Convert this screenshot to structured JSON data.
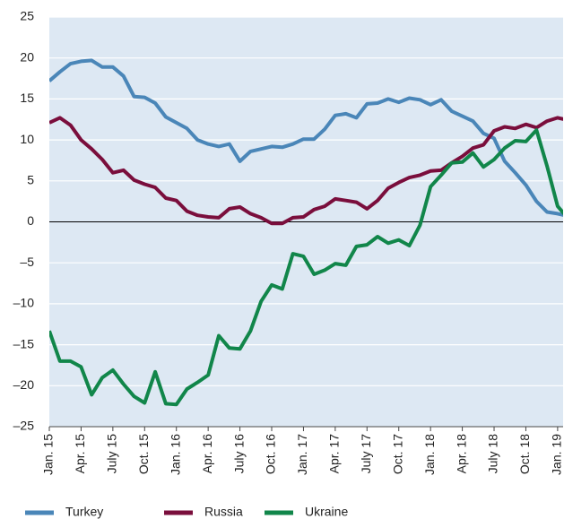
{
  "chart_data": {
    "type": "line",
    "categories": [
      "Jan. 15",
      null,
      null,
      "Apr. 15",
      null,
      null,
      "July 15",
      null,
      null,
      "Oct. 15",
      null,
      null,
      "Jan. 16",
      null,
      null,
      "Apr. 16",
      null,
      null,
      "July 16",
      null,
      null,
      "Oct. 16",
      null,
      null,
      "Jan. 17",
      null,
      null,
      "Apr. 17",
      null,
      null,
      "July 17",
      null,
      null,
      "Oct. 17",
      null,
      null,
      "Jan. 18",
      null,
      null,
      "Apr. 18",
      null,
      null,
      "July 18",
      null,
      null,
      "Oct. 18",
      null,
      null,
      "Jan. 19",
      null
    ],
    "series": [
      {
        "name": "Turkey",
        "color": "#4a86b8",
        "values": [
          17.2,
          18.3,
          19.3,
          19.6,
          19.7,
          18.9,
          18.9,
          17.8,
          15.3,
          15.2,
          14.5,
          12.8,
          12.1,
          11.4,
          10.0,
          9.5,
          9.2,
          9.5,
          7.4,
          8.6,
          8.9,
          9.2,
          9.1,
          9.5,
          10.1,
          10.1,
          11.3,
          13.0,
          13.2,
          12.7,
          14.4,
          14.5,
          15.0,
          14.6,
          15.1,
          14.9,
          14.3,
          14.9,
          13.5,
          12.9,
          12.3,
          10.8,
          10.2,
          7.4,
          6.0,
          4.5,
          2.5,
          1.2,
          1.0,
          0.7
        ]
      },
      {
        "name": "Russia",
        "color": "#7a0e3c",
        "values": [
          12.1,
          12.7,
          11.8,
          10.0,
          8.9,
          7.6,
          6.0,
          6.3,
          5.1,
          4.6,
          4.2,
          2.9,
          2.6,
          1.3,
          0.8,
          0.6,
          0.5,
          1.6,
          1.8,
          1.0,
          0.5,
          -0.2,
          -0.2,
          0.5,
          0.6,
          1.5,
          1.9,
          2.8,
          2.6,
          2.4,
          1.6,
          2.6,
          4.1,
          4.8,
          5.4,
          5.7,
          6.2,
          6.3,
          7.2,
          8.0,
          9.0,
          9.4,
          11.1,
          11.6,
          11.4,
          11.9,
          11.5,
          12.3,
          12.7,
          12.4
        ]
      },
      {
        "name": "Ukraine",
        "color": "#11864a",
        "values": [
          -13.3,
          -17.0,
          -17.0,
          -17.7,
          -21.1,
          -19.0,
          -18.1,
          -19.8,
          -21.3,
          -22.1,
          -18.3,
          -22.2,
          -22.3,
          -20.4,
          -19.6,
          -18.7,
          -13.9,
          -15.4,
          -15.5,
          -13.3,
          -9.7,
          -7.7,
          -8.2,
          -3.9,
          -4.2,
          -6.4,
          -5.9,
          -5.1,
          -5.3,
          -3.0,
          -2.8,
          -1.8,
          -2.6,
          -2.2,
          -2.9,
          -0.4,
          4.3,
          5.7,
          7.2,
          7.3,
          8.4,
          6.7,
          7.6,
          9.0,
          9.9,
          9.8,
          11.2,
          6.8,
          1.9,
          0.4
        ]
      }
    ],
    "ylim": [
      -25,
      25
    ],
    "yticks": [
      {
        "value": -25,
        "label": "–25"
      },
      {
        "value": -20,
        "label": "–20"
      },
      {
        "value": -15,
        "label": "–15"
      },
      {
        "value": -10,
        "label": "–10"
      },
      {
        "value": -5,
        "label": "–5"
      },
      0,
      5,
      10,
      15,
      20,
      25
    ],
    "grid": true
  }
}
